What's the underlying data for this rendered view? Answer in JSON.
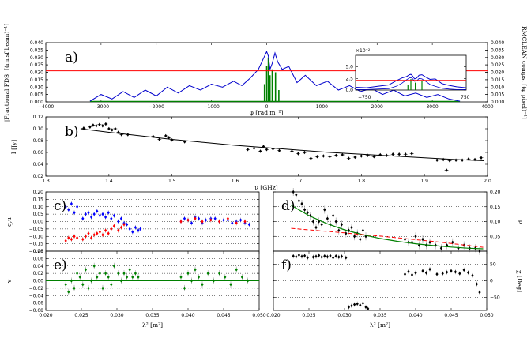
{
  "chart_data": [
    {
      "id": "a",
      "panel_label": "a)",
      "type": "line",
      "xlabel": "φ [rad m⁻²]",
      "ylabel_left": "|Fractional FDS| [(rmsf beam)⁻¹]",
      "ylabel_right": "RMCLEAN comps. [(φ pixel)⁻¹]",
      "xlim": [
        -4000,
        4000
      ],
      "ylim": [
        0,
        0.04
      ],
      "x_ticks": [
        -4000,
        -3000,
        -2000,
        -1000,
        0,
        1000,
        2000,
        3000,
        4000
      ],
      "x_tick_labels": [
        "−4000",
        "−3000",
        "−2000",
        "−1000",
        "0",
        "1000",
        "2000",
        "3000",
        "4000"
      ],
      "y_ticks": [
        0,
        0.005,
        0.01,
        0.015,
        0.02,
        0.025,
        0.03,
        0.035,
        0.04
      ],
      "y_tick_labels": [
        "0.000",
        "0.005",
        "0.010",
        "0.015",
        "0.020",
        "0.025",
        "0.030",
        "0.035",
        "0.040"
      ],
      "threshold": 0.021,
      "fds": {
        "x": [
          -3200,
          -3000,
          -2800,
          -2600,
          -2400,
          -2200,
          -2000,
          -1800,
          -1600,
          -1400,
          -1200,
          -1000,
          -800,
          -600,
          -450,
          -300,
          -150,
          -50,
          0,
          30,
          60,
          100,
          150,
          200,
          280,
          400,
          550,
          700,
          900,
          1100,
          1300,
          1500,
          1700,
          1900,
          2100,
          2300,
          2500,
          2700,
          2900,
          3100,
          3300,
          3500
        ],
        "y": [
          0.0005,
          0.005,
          0.002,
          0.007,
          0.003,
          0.008,
          0.004,
          0.01,
          0.006,
          0.011,
          0.008,
          0.012,
          0.01,
          0.014,
          0.011,
          0.016,
          0.022,
          0.03,
          0.034,
          0.031,
          0.022,
          0.026,
          0.033,
          0.027,
          0.022,
          0.024,
          0.013,
          0.018,
          0.011,
          0.014,
          0.008,
          0.011,
          0.007,
          0.009,
          0.005,
          0.008,
          0.004,
          0.006,
          0.003,
          0.005,
          0.002,
          0.0005
        ]
      },
      "clean_components": [
        {
          "x": -40,
          "y": 0.012
        },
        {
          "x": 0,
          "y": 0.024
        },
        {
          "x": 30,
          "y": 0.03
        },
        {
          "x": 60,
          "y": 0.018
        },
        {
          "x": 100,
          "y": 0.022
        },
        {
          "x": 160,
          "y": 0.02
        },
        {
          "x": 220,
          "y": 0.008
        }
      ],
      "inset": {
        "exponent_label": "×10⁻²",
        "ylim": [
          0,
          7.5
        ],
        "y_ticks": [
          0,
          2.5,
          5.0
        ],
        "y_tick_labels": [
          "0.0",
          "2.5",
          "5.0"
        ],
        "xlim": [
          -750,
          750
        ],
        "x_tick_labels": [
          "−750",
          "750"
        ],
        "threshold": 2.1,
        "x": [
          -750,
          -600,
          -450,
          -300,
          -200,
          -120,
          -60,
          -20,
          0,
          20,
          50,
          80,
          110,
          150,
          200,
          260,
          330,
          420,
          520,
          620,
          750
        ],
        "outer_y": [
          0.6,
          0.5,
          0.8,
          1.1,
          2.0,
          2.6,
          2.9,
          3.3,
          3.4,
          3.1,
          2.4,
          2.6,
          3.2,
          3.3,
          2.8,
          2.3,
          2.4,
          1.4,
          1.0,
          0.7,
          0.5
        ],
        "inner_y": [
          0.1,
          0.1,
          0.2,
          0.3,
          0.8,
          1.5,
          2.2,
          2.6,
          2.7,
          2.5,
          1.9,
          2.0,
          2.5,
          2.4,
          1.9,
          1.2,
          0.8,
          0.4,
          0.2,
          0.1,
          0.1
        ],
        "components": [
          {
            "x": -40,
            "y": 1.2
          },
          {
            "x": 0,
            "y": 2.4
          },
          {
            "x": 60,
            "y": 1.6
          },
          {
            "x": 150,
            "y": 2.0
          }
        ]
      }
    },
    {
      "id": "b",
      "panel_label": "b)",
      "type": "scatter",
      "xlabel": "ν [GHz]",
      "ylabel": "I [Jy]",
      "xlim": [
        1.3,
        2.0
      ],
      "ylim": [
        0.02,
        0.12
      ],
      "x_ticks": [
        1.3,
        1.4,
        1.5,
        1.6,
        1.7,
        1.8,
        1.9,
        2.0
      ],
      "x_tick_labels": [
        "1.3",
        "1.4",
        "1.5",
        "1.6",
        "1.7",
        "1.8",
        "1.9",
        "2.0"
      ],
      "y_ticks": [
        0.02,
        0.04,
        0.06,
        0.08,
        0.1,
        0.12
      ],
      "y_tick_labels": [
        "0.02",
        "0.04",
        "0.06",
        "0.08",
        "0.10",
        "0.12"
      ],
      "x": [
        1.36,
        1.37,
        1.375,
        1.38,
        1.385,
        1.39,
        1.395,
        1.4,
        1.405,
        1.41,
        1.415,
        1.42,
        1.43,
        1.47,
        1.48,
        1.49,
        1.495,
        1.5,
        1.52,
        1.62,
        1.63,
        1.64,
        1.645,
        1.65,
        1.66,
        1.67,
        1.69,
        1.7,
        1.71,
        1.72,
        1.73,
        1.74,
        1.75,
        1.76,
        1.77,
        1.78,
        1.79,
        1.8,
        1.81,
        1.82,
        1.83,
        1.84,
        1.85,
        1.86,
        1.87,
        1.88,
        1.92,
        1.93,
        1.935,
        1.94,
        1.95,
        1.96,
        1.97,
        1.98,
        1.99
      ],
      "y": [
        0.101,
        0.103,
        0.106,
        0.105,
        0.107,
        0.105,
        0.108,
        0.1,
        0.098,
        0.1,
        0.094,
        0.09,
        0.09,
        0.087,
        0.082,
        0.088,
        0.085,
        0.081,
        0.078,
        0.065,
        0.067,
        0.062,
        0.07,
        0.065,
        0.066,
        0.063,
        0.062,
        0.058,
        0.06,
        0.05,
        0.053,
        0.054,
        0.053,
        0.055,
        0.056,
        0.05,
        0.052,
        0.054,
        0.055,
        0.053,
        0.056,
        0.055,
        0.057,
        0.057,
        0.057,
        0.058,
        0.047,
        0.048,
        0.03,
        0.046,
        0.047,
        0.047,
        0.049,
        0.048,
        0.051
      ],
      "fit": {
        "x": [
          1.355,
          1.4,
          1.45,
          1.5,
          1.55,
          1.6,
          1.65,
          1.7,
          1.75,
          1.8,
          1.85,
          1.9,
          1.95,
          1.995
        ],
        "y": [
          0.1,
          0.094,
          0.088,
          0.082,
          0.077,
          0.072,
          0.068,
          0.064,
          0.06,
          0.057,
          0.054,
          0.051,
          0.048,
          0.046
        ]
      }
    },
    {
      "id": "c",
      "panel_label": "c)",
      "type": "scatter",
      "ylabel": "q,u",
      "xlim": [
        0.02,
        0.05
      ],
      "ylim": [
        -0.2,
        0.2
      ],
      "y_ticks": [
        -0.2,
        -0.15,
        -0.1,
        -0.05,
        0,
        0.05,
        0.1,
        0.15,
        0.2
      ],
      "y_tick_labels": [
        "−0.20",
        "−0.15",
        "−0.10",
        "−0.05",
        "0.00",
        "0.05",
        "0.10",
        "0.15",
        "0.20"
      ],
      "series": [
        {
          "color": "#0000ff",
          "x": [
            0.0228,
            0.0232,
            0.0236,
            0.024,
            0.0244,
            0.0252,
            0.0256,
            0.026,
            0.0264,
            0.0268,
            0.0272,
            0.0276,
            0.028,
            0.0284,
            0.0288,
            0.0292,
            0.0296,
            0.0302,
            0.0306,
            0.031,
            0.0314,
            0.0318,
            0.0322,
            0.0326,
            0.033,
            0.0333,
            0.039,
            0.0395,
            0.04,
            0.0405,
            0.041,
            0.0415,
            0.042,
            0.0425,
            0.0432,
            0.0438,
            0.0444,
            0.045,
            0.0456,
            0.0462,
            0.0468,
            0.0474,
            0.048,
            0.0486
          ],
          "y": [
            0.1,
            0.08,
            0.12,
            0.06,
            0.1,
            0.02,
            0.05,
            0.06,
            0.03,
            0.05,
            0.07,
            0.04,
            0.05,
            0.03,
            0.06,
            0.02,
            0.04,
            0.0,
            0.02,
            -0.01,
            -0.02,
            -0.05,
            -0.07,
            -0.04,
            -0.06,
            -0.05,
            0.0,
            0.02,
            0.01,
            -0.01,
            0.03,
            0.02,
            -0.01,
            0.01,
            0.02,
            0.02,
            0.0,
            0.01,
            0.01,
            -0.01,
            0.0,
            0.01,
            -0.01,
            -0.02
          ]
        },
        {
          "color": "#ff0000",
          "x": [
            0.0228,
            0.0232,
            0.0236,
            0.024,
            0.0244,
            0.0252,
            0.0256,
            0.026,
            0.0264,
            0.0268,
            0.0272,
            0.0276,
            0.028,
            0.0284,
            0.0288,
            0.0292,
            0.0296,
            0.0302,
            0.0306,
            0.031,
            0.039,
            0.04,
            0.041,
            0.042,
            0.0432,
            0.0444,
            0.0456,
            0.0468,
            0.048
          ],
          "y": [
            -0.13,
            -0.11,
            -0.12,
            -0.1,
            -0.11,
            -0.12,
            -0.1,
            -0.08,
            -0.11,
            -0.09,
            -0.08,
            -0.07,
            -0.09,
            -0.06,
            -0.08,
            -0.05,
            -0.03,
            -0.06,
            -0.04,
            -0.02,
            0.0,
            0.01,
            0.02,
            0.0,
            0.01,
            0.0,
            0.02,
            -0.01,
            0.0
          ]
        }
      ]
    },
    {
      "id": "d",
      "panel_label": "d)",
      "type": "scatter",
      "ylabel": "P",
      "xlim": [
        0.02,
        0.05
      ],
      "ylim": [
        0,
        0.2
      ],
      "y_ticks": [
        0.05,
        0.1,
        0.15,
        0.2
      ],
      "y_tick_labels": [
        "0.05",
        "0.10",
        "0.15",
        "0.20"
      ],
      "x": [
        0.0228,
        0.0232,
        0.0236,
        0.024,
        0.0244,
        0.0248,
        0.0252,
        0.0256,
        0.026,
        0.0264,
        0.0268,
        0.0272,
        0.0276,
        0.028,
        0.0284,
        0.0288,
        0.0292,
        0.0296,
        0.0302,
        0.0306,
        0.031,
        0.0314,
        0.0318,
        0.0322,
        0.0326,
        0.033,
        0.0385,
        0.039,
        0.0395,
        0.04,
        0.0405,
        0.041,
        0.0415,
        0.042,
        0.0428,
        0.0436,
        0.0444,
        0.0452,
        0.046,
        0.0468,
        0.0476,
        0.0484,
        0.049
      ],
      "y": [
        0.2,
        0.19,
        0.17,
        0.16,
        0.14,
        0.13,
        0.12,
        0.1,
        0.08,
        0.1,
        0.09,
        0.14,
        0.11,
        0.09,
        0.12,
        0.1,
        0.07,
        0.09,
        0.06,
        0.07,
        0.08,
        0.05,
        0.06,
        0.04,
        0.07,
        0.05,
        0.04,
        0.03,
        0.03,
        0.05,
        0.02,
        0.04,
        0.02,
        0.03,
        0.02,
        0.01,
        0.02,
        0.03,
        0.01,
        0.02,
        0.01,
        0.01,
        0.0
      ],
      "model_green": {
        "x": [
          0.0225,
          0.025,
          0.0275,
          0.03,
          0.0325,
          0.035,
          0.0375,
          0.04,
          0.0425,
          0.045,
          0.0475,
          0.0495
        ],
        "y": [
          0.155,
          0.12,
          0.093,
          0.072,
          0.056,
          0.043,
          0.033,
          0.025,
          0.019,
          0.014,
          0.01,
          0.008
        ]
      },
      "model_red": {
        "x": [
          0.0225,
          0.025,
          0.0275,
          0.03,
          0.0325,
          0.035,
          0.0375,
          0.04,
          0.0425,
          0.045,
          0.0475,
          0.0495
        ],
        "y": [
          0.077,
          0.072,
          0.067,
          0.062,
          0.056,
          0.051,
          0.045,
          0.039,
          0.033,
          0.026,
          0.019,
          0.013
        ]
      }
    },
    {
      "id": "e",
      "panel_label": "e)",
      "type": "scatter",
      "ylabel": "v",
      "xlabel": "λ² [m²]",
      "xlim": [
        0.02,
        0.05
      ],
      "ylim": [
        -0.08,
        0.08
      ],
      "x_ticks": [
        0.02,
        0.025,
        0.03,
        0.035,
        0.04,
        0.045,
        0.05
      ],
      "x_tick_labels": [
        "0.020",
        "0.025",
        "0.030",
        "0.035",
        "0.040",
        "0.045",
        "0.050"
      ],
      "y_ticks": [
        -0.08,
        -0.06,
        -0.04,
        -0.02,
        0,
        0.02,
        0.04,
        0.06,
        0.08
      ],
      "y_tick_labels": [
        "−0.08",
        "−0.06",
        "−0.04",
        "−0.02",
        "0.00",
        "0.02",
        "0.04",
        "0.06",
        "0.08"
      ],
      "color": "#008000",
      "x": [
        0.0228,
        0.0232,
        0.0236,
        0.024,
        0.0244,
        0.0248,
        0.0252,
        0.0256,
        0.026,
        0.0264,
        0.0268,
        0.0272,
        0.0276,
        0.028,
        0.0284,
        0.0288,
        0.0292,
        0.0296,
        0.0302,
        0.0306,
        0.031,
        0.0314,
        0.0318,
        0.0322,
        0.0326,
        0.033,
        0.039,
        0.0395,
        0.04,
        0.0405,
        0.041,
        0.0415,
        0.042,
        0.0428,
        0.0436,
        0.0444,
        0.0452,
        0.046,
        0.0468,
        0.0476,
        0.0484
      ],
      "y": [
        -0.01,
        -0.03,
        0.0,
        -0.02,
        0.02,
        0.01,
        -0.01,
        0.03,
        -0.02,
        0.0,
        0.04,
        0.01,
        0.02,
        -0.02,
        0.02,
        0.01,
        -0.01,
        0.04,
        0.02,
        0.0,
        0.02,
        0.01,
        0.03,
        0.01,
        0.02,
        0.01,
        0.01,
        -0.02,
        0.02,
        0.0,
        0.03,
        0.01,
        -0.01,
        0.02,
        0.0,
        0.02,
        0.01,
        -0.01,
        0.03,
        0.01,
        0.0
      ]
    },
    {
      "id": "f",
      "panel_label": "f)",
      "type": "scatter",
      "ylabel": "χ [Deg]",
      "xlabel": "λ² [m²]",
      "xlim": [
        0.02,
        0.05
      ],
      "ylim": [
        -90,
        90
      ],
      "x_ticks": [
        0.02,
        0.025,
        0.03,
        0.035,
        0.04,
        0.045,
        0.05
      ],
      "x_tick_labels": [
        "0.020",
        "0.025",
        "0.030",
        "0.035",
        "0.040",
        "0.045",
        "0.050"
      ],
      "y_ticks": [
        -50,
        0,
        50
      ],
      "y_tick_labels": [
        "−50",
        "0",
        "50"
      ],
      "x": [
        0.0228,
        0.0232,
        0.0236,
        0.024,
        0.0244,
        0.0248,
        0.0256,
        0.026,
        0.0264,
        0.0268,
        0.0272,
        0.0276,
        0.028,
        0.0284,
        0.0288,
        0.0292,
        0.0296,
        0.0302,
        0.0306,
        0.031,
        0.0314,
        0.0318,
        0.0322,
        0.0326,
        0.033,
        0.0333,
        0.0385,
        0.039,
        0.0395,
        0.04,
        0.041,
        0.0415,
        0.042,
        0.043,
        0.0438,
        0.0444,
        0.045,
        0.0456,
        0.0462,
        0.0468,
        0.0474,
        0.048,
        0.0486,
        0.049
      ],
      "y": [
        75,
        73,
        78,
        74,
        76,
        70,
        72,
        74,
        77,
        72,
        75,
        73,
        76,
        70,
        75,
        72,
        74,
        70,
        -80,
        -76,
        -72,
        -70,
        -74,
        -68,
        -80,
        -85,
        20,
        28,
        18,
        24,
        30,
        24,
        35,
        20,
        22,
        26,
        30,
        27,
        22,
        33,
        25,
        16,
        -10,
        -35
      ]
    }
  ]
}
